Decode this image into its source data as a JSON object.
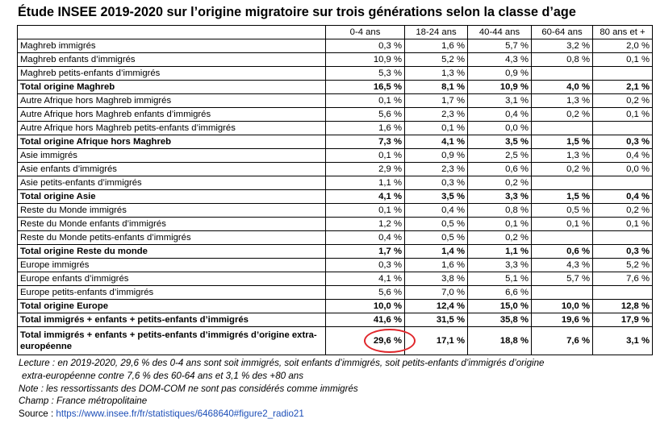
{
  "title": "Étude INSEE 2019-2020 sur l’origine migratoire sur trois générations selon la classe d’age",
  "table": {
    "headers": [
      "",
      "0-4 ans",
      "18-24 ans",
      "40-44 ans",
      "60-64 ans",
      "80 ans et +"
    ],
    "rows": [
      {
        "label": "Maghreb immigrés",
        "values": [
          "0,3 %",
          "1,6 %",
          "5,7 %",
          "3,2 %",
          "2,0 %"
        ],
        "bold": false
      },
      {
        "label": "Maghreb enfants d’immigrés",
        "values": [
          "10,9 %",
          "5,2 %",
          "4,3 %",
          "0,8 %",
          "0,1 %"
        ],
        "bold": false
      },
      {
        "label": "Maghreb petits-enfants d’immigrés",
        "values": [
          "5,3 %",
          "1,3 %",
          "0,9 %",
          "",
          ""
        ],
        "bold": false
      },
      {
        "label": "Total origine Maghreb",
        "values": [
          "16,5 %",
          "8,1 %",
          "10,9 %",
          "4,0 %",
          "2,1 %"
        ],
        "bold": true
      },
      {
        "label": "Autre Afrique hors Maghreb immigrés",
        "values": [
          "0,1 %",
          "1,7 %",
          "3,1 %",
          "1,3 %",
          "0,2 %"
        ],
        "bold": false
      },
      {
        "label": "Autre Afrique hors Maghreb enfants d’immigrés",
        "values": [
          "5,6 %",
          "2,3 %",
          "0,4 %",
          "0,2 %",
          "0,1 %"
        ],
        "bold": false
      },
      {
        "label": "Autre Afrique hors Maghreb petits-enfants d’immigrés",
        "values": [
          "1,6 %",
          "0,1 %",
          "0,0 %",
          "",
          ""
        ],
        "bold": false
      },
      {
        "label": "Total origine Afrique hors Maghreb",
        "values": [
          "7,3 %",
          "4,1 %",
          "3,5 %",
          "1,5 %",
          "0,3 %"
        ],
        "bold": true
      },
      {
        "label": "Asie immigrés",
        "values": [
          "0,1 %",
          "0,9 %",
          "2,5 %",
          "1,3 %",
          "0,4 %"
        ],
        "bold": false
      },
      {
        "label": "Asie enfants d’immigrés",
        "values": [
          "2,9 %",
          "2,3 %",
          "0,6 %",
          "0,2 %",
          "0,0 %"
        ],
        "bold": false
      },
      {
        "label": "Asie petits-enfants d’immigrés",
        "values": [
          "1,1 %",
          "0,3 %",
          "0,2 %",
          "",
          ""
        ],
        "bold": false
      },
      {
        "label": "Total origine Asie",
        "values": [
          "4,1 %",
          "3,5 %",
          "3,3 %",
          "1,5 %",
          "0,4 %"
        ],
        "bold": true
      },
      {
        "label": "Reste du Monde immigrés",
        "values": [
          "0,1 %",
          "0,4 %",
          "0,8 %",
          "0,5 %",
          "0,2 %"
        ],
        "bold": false
      },
      {
        "label": "Reste du Monde enfants d’immigrés",
        "values": [
          "1,2 %",
          "0,5 %",
          "0,1 %",
          "0,1 %",
          "0,1 %"
        ],
        "bold": false
      },
      {
        "label": "Reste du Monde petits-enfants d’immigrés",
        "values": [
          "0,4 %",
          "0,5 %",
          "0,2 %",
          "",
          ""
        ],
        "bold": false
      },
      {
        "label": "Total origine Reste du monde",
        "values": [
          "1,7 %",
          "1,4 %",
          "1,1 %",
          "0,6 %",
          "0,3 %"
        ],
        "bold": true
      },
      {
        "label": "Europe immigrés",
        "values": [
          "0,3 %",
          "1,6 %",
          "3,3 %",
          "4,3 %",
          "5,2 %"
        ],
        "bold": false
      },
      {
        "label": "Europe enfants d’immigrés",
        "values": [
          "4,1 %",
          "3,8 %",
          "5,1 %",
          "5,7 %",
          "7,6 %"
        ],
        "bold": false
      },
      {
        "label": "Europe petits-enfants d’immigrés",
        "values": [
          "5,6 %",
          "7,0 %",
          "6,6 %",
          "",
          ""
        ],
        "bold": false
      },
      {
        "label": "Total origine Europe",
        "values": [
          "10,0 %",
          "12,4 %",
          "15,0 %",
          "10,0 %",
          "12,8 %"
        ],
        "bold": true
      },
      {
        "label": "Total immigrés + enfants + petits-enfants d’immigrés",
        "values": [
          "41,6 %",
          "31,5 %",
          "35,8 %",
          "19,6 %",
          "17,9 %"
        ],
        "bold": true
      },
      {
        "label": "Total immigrés + enfants + petits-enfants d’immigrés d’origine extra-européenne",
        "values": [
          "29,6 %",
          "17,1 %",
          "18,8 %",
          "7,6 %",
          "3,1 %"
        ],
        "bold": true,
        "tall": true,
        "highlight_col": 0
      }
    ]
  },
  "notes": {
    "lecture_1": "Lecture : en 2019-2020, 29,6 % des 0-4 ans sont soit immigrés, soit enfants d’immigrés, soit petits-enfants d’immigrés d’origine",
    "lecture_2": "extra-européenne contre 7,6 % des 60-64 ans et 3,1 % des +80 ans",
    "note": "Note : les ressortissants des DOM-COM ne sont pas considérés comme immigrés",
    "champ": "Champ : France métropolitaine",
    "source_label": "Source : ",
    "source_url": "https://www.insee.fr/fr/statistiques/6468640#figure2_radio21"
  },
  "colors": {
    "highlight_ring": "#e0262b",
    "link": "#1d4fb8"
  }
}
